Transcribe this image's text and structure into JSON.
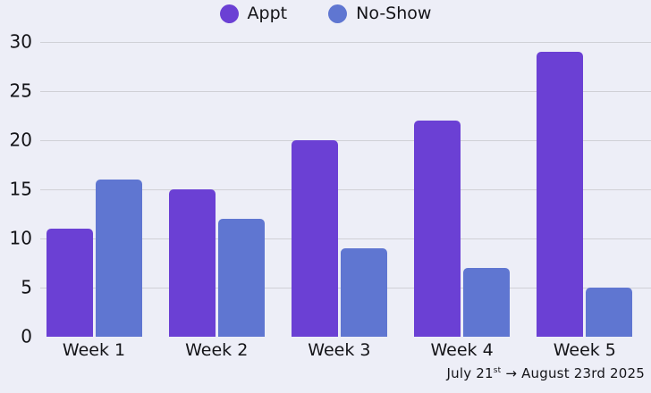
{
  "chart_data": {
    "type": "bar",
    "title": "",
    "categories": [
      "Week 1",
      "Week 2",
      "Week 3",
      "Week 4",
      "Week 5"
    ],
    "series": [
      {
        "name": "Appt",
        "color": "#6B40D4",
        "values": [
          11,
          15,
          20,
          22,
          29
        ]
      },
      {
        "name": "No-Show",
        "color": "#5F76D1",
        "values": [
          16,
          12,
          9,
          7,
          5
        ]
      }
    ],
    "xlabel": "",
    "ylabel": "",
    "ylim": [
      0,
      30
    ],
    "yticks": [
      0,
      5,
      10,
      15,
      20,
      25,
      30
    ],
    "grid": true,
    "legend_position": "top"
  },
  "footer": {
    "date_start": "July 21",
    "date_start_ordinal": "st",
    "date_rest": " → August 23rd 2025"
  },
  "colors": {
    "background": "#EDEEF7",
    "gridline": "#D0D0D6",
    "text": "#141418",
    "appt": "#6B40D4",
    "no_show": "#5F76D1"
  }
}
